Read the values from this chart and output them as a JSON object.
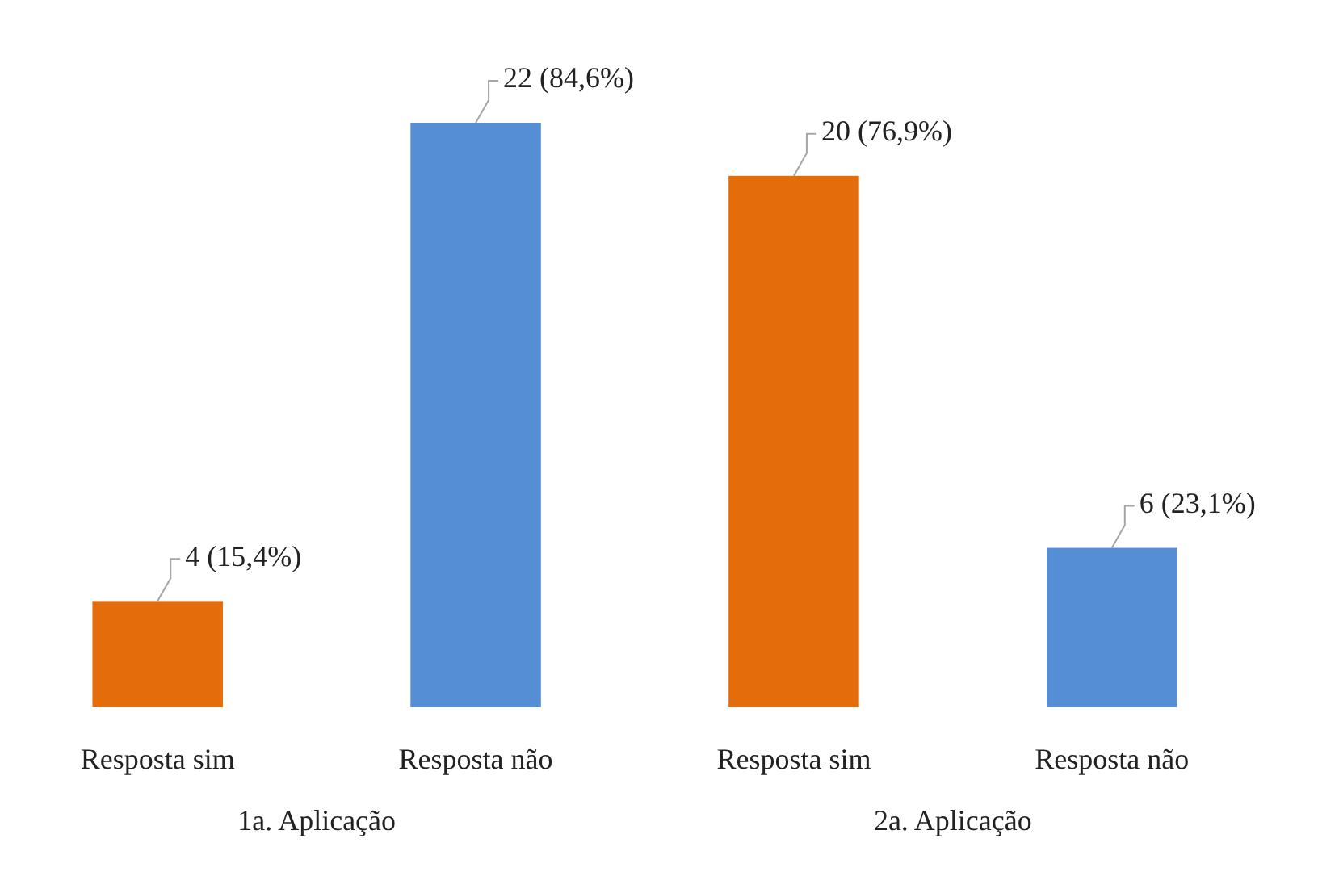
{
  "chart_data": {
    "type": "bar",
    "categories": [
      "Resposta sim",
      "Resposta não",
      "Resposta sim",
      "Resposta não"
    ],
    "values": [
      4,
      22,
      20,
      6
    ],
    "colors": [
      "#e46c0a",
      "#558ed5",
      "#e46c0a",
      "#558ed5"
    ],
    "value_labels": [
      "4 (15,4%)",
      "22 (84,6%)",
      "20 (76,9%)",
      "6 (23,1%)"
    ],
    "annotations": [
      "1a. Aplicação",
      "2a. Aplicação"
    ]
  }
}
